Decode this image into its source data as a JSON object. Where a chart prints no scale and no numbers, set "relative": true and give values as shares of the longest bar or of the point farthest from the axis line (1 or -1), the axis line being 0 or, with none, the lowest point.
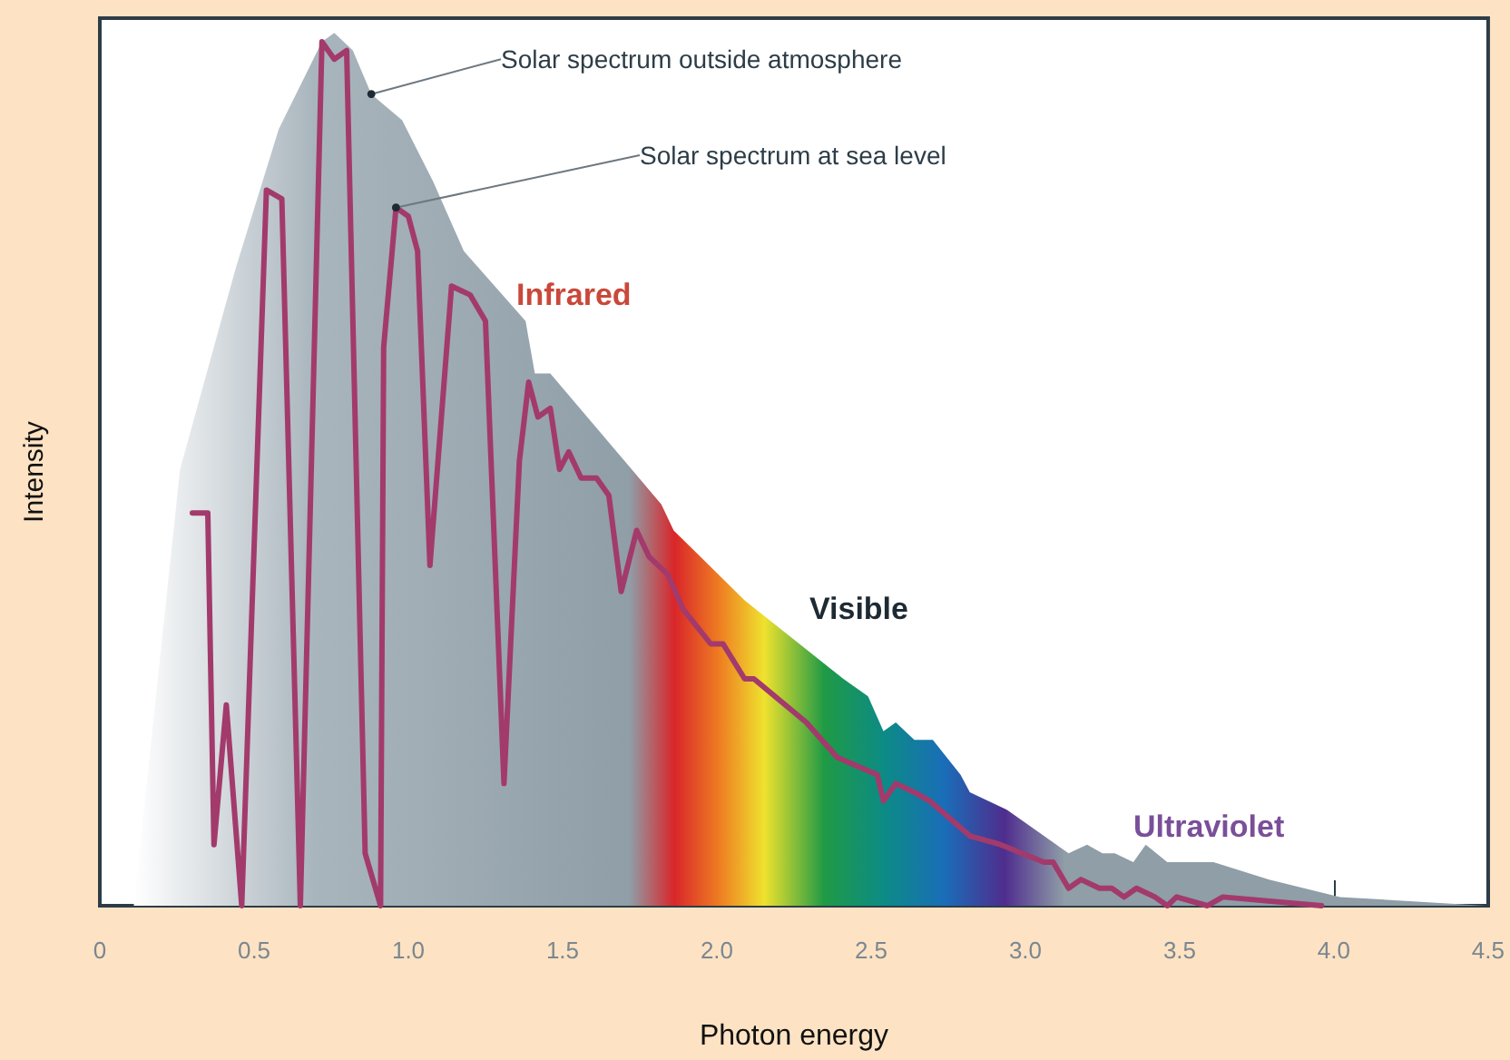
{
  "chart_data": {
    "type": "area",
    "relative": true,
    "xlabel": "Photon energy",
    "ylabel": "Intensity",
    "xlim": [
      0,
      4.5
    ],
    "xticks": [
      0,
      0.5,
      {
        "value": 1,
        "label": "1.0"
      },
      1.5,
      {
        "value": 2,
        "label": "2.0"
      },
      2.5,
      {
        "value": 3,
        "label": "3.0"
      },
      3.5,
      {
        "value": 4,
        "label": "4.0"
      },
      4.5
    ],
    "legend": false,
    "grid": false,
    "marker": "none",
    "annotations": [
      "Infrared",
      "Visible",
      "Ultraviolet"
    ],
    "series": [
      {
        "name": "Solar spectrum outside atmosphere",
        "type": "area",
        "color": "#a9b5bd",
        "x": [
          0.11,
          0.26,
          0.44,
          0.58,
          0.72,
          0.76,
          0.82,
          0.88,
          0.98,
          1.08,
          1.18,
          1.38,
          1.41,
          1.46,
          1.82,
          1.86,
          2.09,
          2.41,
          2.49,
          2.54,
          2.58,
          2.64,
          2.7,
          2.79,
          2.82,
          2.94,
          3.06,
          3.14,
          3.2,
          3.25,
          3.29,
          3.35,
          3.39,
          3.46,
          3.61,
          3.79,
          4.02,
          4.49
        ],
        "values": [
          0,
          0.5,
          0.73,
          0.89,
          0.99,
          1,
          0.98,
          0.93,
          0.9,
          0.83,
          0.75,
          0.67,
          0.61,
          0.61,
          0.46,
          0.43,
          0.35,
          0.26,
          0.24,
          0.2,
          0.21,
          0.19,
          0.19,
          0.15,
          0.13,
          0.11,
          0.08,
          0.06,
          0.07,
          0.06,
          0.06,
          0.05,
          0.07,
          0.05,
          0.05,
          0.03,
          0.01,
          0
        ]
      },
      {
        "name": "Solar spectrum at sea level",
        "type": "line",
        "color": "#a33a6c",
        "x": [
          0.3,
          0.35,
          0.37,
          0.41,
          0.46,
          0.54,
          0.59,
          0.65,
          0.72,
          0.76,
          0.8,
          0.86,
          0.91,
          0.92,
          0.96,
          1.0,
          1.03,
          1.07,
          1.14,
          1.2,
          1.25,
          1.31,
          1.36,
          1.39,
          1.42,
          1.46,
          1.49,
          1.52,
          1.56,
          1.61,
          1.65,
          1.69,
          1.74,
          1.78,
          1.84,
          1.89,
          1.98,
          2.02,
          2.09,
          2.12,
          2.29,
          2.39,
          2.52,
          2.54,
          2.58,
          2.64,
          2.69,
          2.82,
          2.92,
          3.06,
          3.09,
          3.14,
          3.18,
          3.24,
          3.28,
          3.32,
          3.36,
          3.42,
          3.46,
          3.49,
          3.59,
          3.64,
          3.96
        ],
        "values": [
          0.45,
          0.45,
          0.07,
          0.23,
          0,
          0.82,
          0.81,
          0,
          0.99,
          0.97,
          0.98,
          0.06,
          0,
          0.64,
          0.8,
          0.79,
          0.75,
          0.39,
          0.71,
          0.7,
          0.67,
          0.14,
          0.51,
          0.6,
          0.56,
          0.57,
          0.5,
          0.52,
          0.49,
          0.49,
          0.47,
          0.36,
          0.43,
          0.4,
          0.38,
          0.34,
          0.3,
          0.3,
          0.26,
          0.26,
          0.21,
          0.17,
          0.15,
          0.12,
          0.14,
          0.13,
          0.12,
          0.08,
          0.07,
          0.05,
          0.05,
          0.02,
          0.03,
          0.02,
          0.02,
          0.01,
          0.02,
          0.01,
          0,
          0.01,
          0,
          0.01,
          0
        ]
      }
    ]
  }
}
